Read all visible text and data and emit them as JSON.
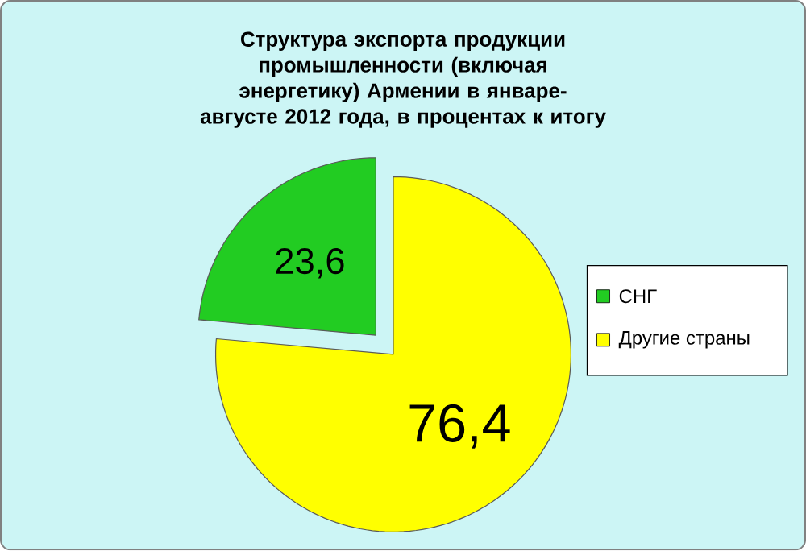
{
  "chart_data": {
    "type": "pie",
    "title": "Структура экспорта продукции промышленности (включая энергетику) Армении в январе-августе 2012 года, в процентах к итогу",
    "categories": [
      "СНГ",
      "Другие страны"
    ],
    "values": [
      23.6,
      76.4
    ],
    "colors": [
      "#22cc22",
      "#ffff00"
    ],
    "value_labels": [
      "23,6",
      "76,4"
    ],
    "legend": "right"
  }
}
